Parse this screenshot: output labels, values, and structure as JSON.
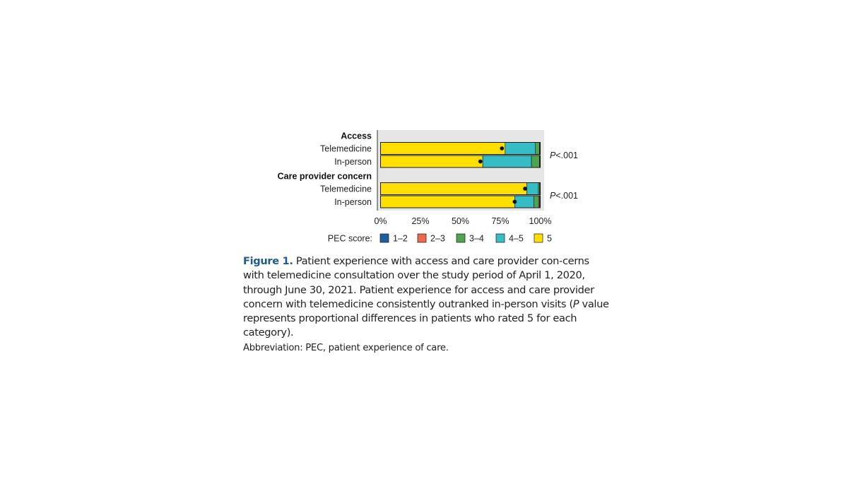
{
  "chart_data": {
    "type": "bar",
    "orientation": "horizontal",
    "stacked": true,
    "groups": [
      {
        "label": "Access",
        "p_value": "<.001",
        "rows": [
          {
            "label": "Telemedicine",
            "segments": [
              0.3,
              0.2,
              2.5,
              19.0,
              78.0
            ],
            "marker": 76.0
          },
          {
            "label": "In-person",
            "segments": [
              0.3,
              0.2,
              5.0,
              30.5,
              64.0
            ],
            "marker": 62.5
          }
        ]
      },
      {
        "label": "Care provider concern",
        "p_value": "<.001",
        "rows": [
          {
            "label": "Telemedicine",
            "segments": [
              0.2,
              0.2,
              0.8,
              7.2,
              91.6
            ],
            "marker": 90.5
          },
          {
            "label": "In-person",
            "segments": [
              0.5,
              0.5,
              3.0,
              12.0,
              84.0
            ],
            "marker": 84.0
          }
        ]
      }
    ],
    "categories_order": [
      "1–2",
      "2–3",
      "3–4",
      "4–5",
      "5"
    ],
    "x_ticks": [
      "0%",
      "25%",
      "50%",
      "75%",
      "100%"
    ],
    "xlim": [
      0,
      100
    ],
    "legend": {
      "title": "PEC score:",
      "items": [
        {
          "label": "1–2",
          "color": "#1a5fa0"
        },
        {
          "label": "2–3",
          "color": "#ee6a4a"
        },
        {
          "label": "3–4",
          "color": "#4ea54e"
        },
        {
          "label": "4–5",
          "color": "#35bcc4"
        },
        {
          "label": "5",
          "color": "#ffdf00"
        }
      ],
      "placement": "bottom"
    },
    "panel_background": "#e6e6e6"
  },
  "caption": {
    "figure_label": "Figure 1.",
    "text_1": " Patient experience with access and care provider con-cerns with telemedicine consultation over the study period of April 1, 2020, through June 30, 2021. Patient experience for access and care provider concern with telemedicine consistently outranked in-person visits (",
    "p_italic": "P",
    "text_2": " value represents proportional differences in patients who rated 5 for each category).",
    "abbreviation": "Abbreviation: PEC, patient experience of care."
  }
}
